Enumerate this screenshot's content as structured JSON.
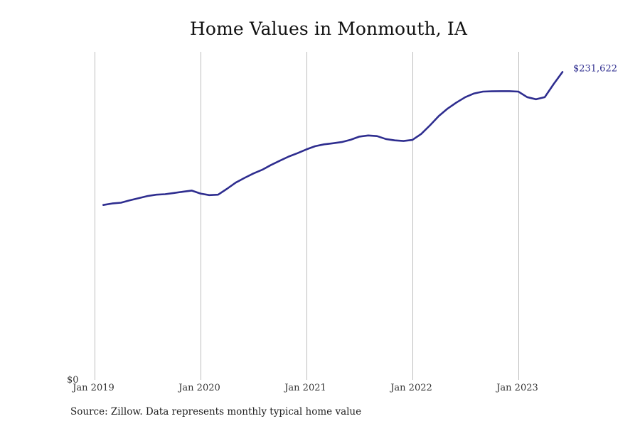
{
  "source_note": "Source: Zillow. Data represents monthly typical home value",
  "chart_data": {
    "type": "line",
    "title": "Home Values in Monmouth, IA",
    "xlabel": "",
    "ylabel": "",
    "ylim": [
      0,
      242000
    ],
    "y_ticks": [
      "$0"
    ],
    "x_ticks": [
      "Jan 2019",
      "Jan 2020",
      "Jan 2021",
      "Jan 2022",
      "Jan 2023"
    ],
    "grid": "vertical",
    "legend": "none",
    "colors": {
      "line": "#2e2d8f",
      "grid": "#bdbdbd"
    },
    "end_label": "$231,622",
    "series": [
      {
        "x": [
          "2019-01",
          "2019-02",
          "2019-03",
          "2019-04",
          "2019-05",
          "2019-06",
          "2019-07",
          "2019-08",
          "2019-09",
          "2019-10",
          "2019-11",
          "2019-12",
          "2020-01",
          "2020-02",
          "2020-03",
          "2020-04",
          "2020-05",
          "2020-06",
          "2020-07",
          "2020-08",
          "2020-09",
          "2020-10",
          "2020-11",
          "2020-12",
          "2021-01",
          "2021-02",
          "2021-03",
          "2021-04",
          "2021-05",
          "2021-06",
          "2021-07",
          "2021-08",
          "2021-09",
          "2021-10",
          "2021-11",
          "2021-12",
          "2022-01",
          "2022-02",
          "2022-03",
          "2022-04",
          "2022-05",
          "2022-06",
          "2022-07",
          "2022-08",
          "2022-09",
          "2022-10",
          "2022-11",
          "2022-12",
          "2023-01",
          "2023-02",
          "2023-03",
          "2023-04",
          "2023-05"
        ],
        "values": [
          131600,
          132700,
          133300,
          135100,
          136700,
          138300,
          139300,
          139700,
          140600,
          141500,
          142400,
          140200,
          139000,
          139300,
          143700,
          148400,
          152000,
          155300,
          158100,
          161700,
          164900,
          168000,
          170600,
          173400,
          175800,
          177200,
          178000,
          178900,
          180600,
          183000,
          183900,
          183400,
          181200,
          180200,
          179700,
          180500,
          185000,
          191500,
          198500,
          204100,
          208700,
          212700,
          215500,
          216900,
          217100,
          217200,
          217200,
          216900,
          212700,
          211100,
          212700,
          222500,
          231622
        ]
      }
    ]
  }
}
